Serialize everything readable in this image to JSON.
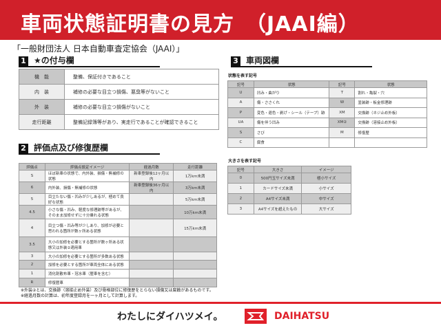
{
  "header": {
    "title": "車両状態証明書の見方　（JAAI編）",
    "org": "「一般財団法人 日本自動車査定協会（JAAI）」"
  },
  "section1": {
    "num": "1",
    "title": "★の付与欄",
    "rows": [
      {
        "k": "機　能",
        "v": "整備、保証付きであること"
      },
      {
        "k": "内　装",
        "v": "補修の必要な目立つ損傷、悪臭等がないこと"
      },
      {
        "k": "外　装",
        "v": "補修の必要な目立つ損傷がないこと"
      },
      {
        "k": "走行距離",
        "v": "整備記録簿等があり、実走行であることが確認できること"
      }
    ]
  },
  "section2": {
    "num": "2",
    "title": "評価点及び修復歴欄",
    "headers": [
      "評価点",
      "評価点設定イメージ",
      "経過月数",
      "走行距離"
    ],
    "rows": [
      [
        "S",
        "ほぼ新車の状態で、内外装、損傷・無補修の状態",
        "新車登録後12ヶ月以内",
        "1万km未満"
      ],
      [
        "6",
        "内外装、損傷・無補修の状態",
        "新車登録後36ヶ月以内",
        "3万km未満"
      ],
      [
        "5",
        "目立たない傷・凹みが少しあるが、極めて良好な状態",
        "",
        "5万km未満"
      ],
      [
        "4.5",
        "小さな傷・凹み、軽度な修理跡等があるが、そのまま加修せずに十分乗れる状態",
        "",
        "10万km未満"
      ],
      [
        "4",
        "目立つ傷・凹み等が少しあり、加修が必要と思われる箇所が数ヶ所ある状態",
        "",
        "15万km未満"
      ],
      [
        "3.5",
        "大小の加修を必要とする箇所が数ヶ所ある状態又は外装②適用車",
        "",
        ""
      ],
      [
        "3",
        "大小の加修を必要とする箇所が多数ある状態",
        "",
        ""
      ],
      [
        "2",
        "加修を必要とする箇所が車両全体にある状態",
        "",
        ""
      ],
      [
        "1",
        "消化剤散布車・冠水車（歴車を含む）",
        "",
        ""
      ],
      [
        "R",
        "修復歴車",
        "",
        ""
      ]
    ],
    "notes": [
      "※外装②とは、交換跡（溶接止め外装）及び骨格部位に修復歴をとらない損傷又は腐蝕があるものです。",
      "※経過月数の計算は、初年度登録月を一ヶ月として計算します。"
    ]
  },
  "section3": {
    "num": "3",
    "title": "車両図欄",
    "state_label": "状態を表す記号",
    "state_headers": [
      "記号",
      "状態",
      "記号",
      "状態"
    ],
    "state_rows": [
      [
        "U",
        "凹み・曲がり",
        "T",
        "割れ・亀裂・穴"
      ],
      [
        "A",
        "傷・ささくれ",
        "W",
        "塗装跡・板金修理跡"
      ],
      [
        "P",
        "変色・退色・剥げ・シール（テープ）跡",
        "XM",
        "交換跡（ネジ止め外板）"
      ],
      [
        "UA",
        "傷を伴う凹み",
        "XM②",
        "交換跡（溶接止め外板）"
      ],
      [
        "S",
        "さび",
        "M",
        "修復歴"
      ],
      [
        "C",
        "腐食",
        "",
        ""
      ]
    ],
    "size_label": "大きさを表す記号",
    "size_headers": [
      "記号",
      "大きさ",
      "イメージ"
    ],
    "size_rows": [
      [
        "0",
        "500円玉サイズ未満",
        "極小サイズ"
      ],
      [
        "1",
        "カードサイズ未満",
        "小サイズ"
      ],
      [
        "2",
        "A4サイズ未満",
        "中サイズ"
      ],
      [
        "3",
        "A4サイズを超えたもの",
        "大サイズ"
      ]
    ]
  },
  "footer": {
    "slogan": "わたしにダイハツメイ。",
    "brand": "DAIHATSU",
    "brand_color": "#e0202a"
  }
}
